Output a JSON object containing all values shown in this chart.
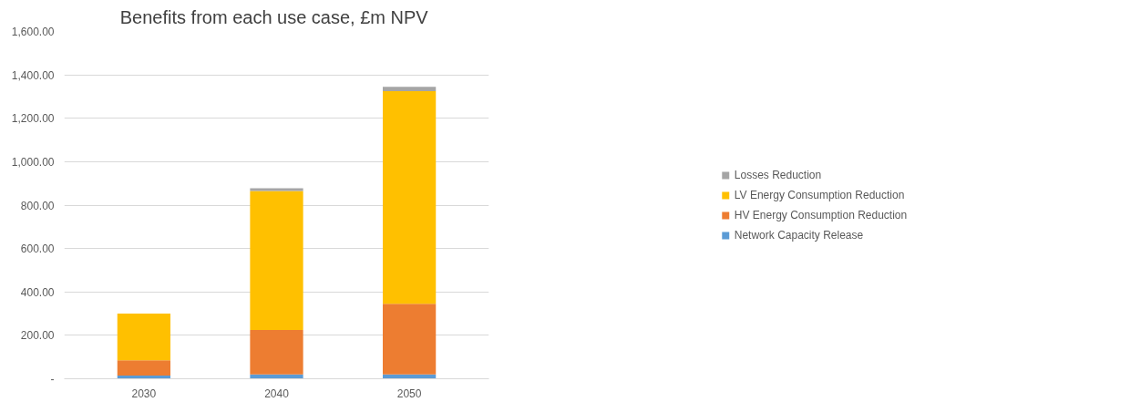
{
  "chart_data": {
    "type": "bar",
    "title": "Benefits from each use case, £m  NPV",
    "stacked": true,
    "categories": [
      "2030",
      "2040",
      "2050"
    ],
    "series": [
      {
        "name": "Network Capacity Release",
        "color": "#5b9bd5",
        "values": [
          15,
          20,
          20
        ]
      },
      {
        "name": "HV Energy Consumption Reduction",
        "color": "#ed7d31",
        "values": [
          70,
          205,
          325
        ]
      },
      {
        "name": "LV Energy Consumption Reduction",
        "color": "#ffc000",
        "values": [
          215,
          640,
          980
        ]
      },
      {
        "name": "Losses Reduction",
        "color": "#a5a5a5",
        "values": [
          null,
          13,
          20
        ]
      }
    ],
    "ylim": [
      0,
      1600
    ],
    "yticks": [
      {
        "value": 0,
        "label": "-"
      },
      {
        "value": 200,
        "label": "200.00"
      },
      {
        "value": 400,
        "label": "400.00"
      },
      {
        "value": 600,
        "label": "600.00"
      },
      {
        "value": 800,
        "label": "800.00"
      },
      {
        "value": 1000,
        "label": "1,000.00"
      },
      {
        "value": 1200,
        "label": "1,200.00"
      },
      {
        "value": 1400,
        "label": "1,400.00"
      },
      {
        "value": 1600,
        "label": "1,600.00"
      }
    ],
    "grid": "y",
    "legend": "right"
  }
}
